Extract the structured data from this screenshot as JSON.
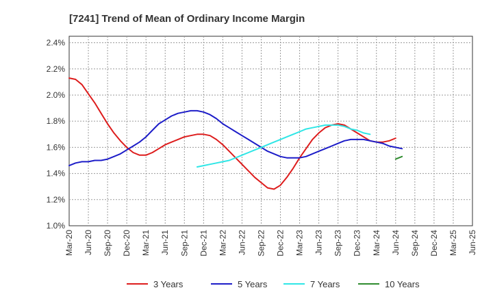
{
  "chart_data": {
    "type": "line",
    "title": "[7241]  Trend of Mean of Ordinary Income Margin",
    "xlabel": "",
    "ylabel": "",
    "x_ticks": [
      "Mar-20",
      "Jun-20",
      "Sep-20",
      "Dec-20",
      "Mar-21",
      "Jun-21",
      "Sep-21",
      "Dec-21",
      "Mar-22",
      "Jun-22",
      "Sep-22",
      "Dec-22",
      "Mar-23",
      "Jun-23",
      "Sep-23",
      "Dec-23",
      "Mar-24",
      "Jun-24",
      "Sep-24",
      "Dec-24",
      "Mar-25",
      "Jun-25"
    ],
    "y_ticks": [
      "1.0%",
      "1.2%",
      "1.4%",
      "1.6%",
      "1.8%",
      "2.0%",
      "2.2%",
      "2.4%"
    ],
    "ylim": [
      1.0,
      2.45
    ],
    "grid": true,
    "legend_position": "bottom",
    "series": [
      {
        "name": "3 Years",
        "color": "#dd1c1c",
        "values": [
          2.13,
          2.12,
          2.08,
          2.01,
          1.94,
          1.86,
          1.78,
          1.71,
          1.65,
          1.6,
          1.56,
          1.54,
          1.54,
          1.56,
          1.59,
          1.62,
          1.64,
          1.66,
          1.68,
          1.69,
          1.7,
          1.7,
          1.69,
          1.66,
          1.62,
          1.57,
          1.52,
          1.47,
          1.42,
          1.37,
          1.33,
          1.29,
          1.28,
          1.31,
          1.37,
          1.44,
          1.52,
          1.59,
          1.66,
          1.71,
          1.75,
          1.77,
          1.78,
          1.77,
          1.74,
          1.71,
          1.68,
          1.65,
          1.64,
          1.64,
          1.65,
          1.67
        ]
      },
      {
        "name": "5 Years",
        "color": "#1c1cc8",
        "values": [
          1.46,
          1.48,
          1.49,
          1.49,
          1.5,
          1.5,
          1.51,
          1.53,
          1.55,
          1.58,
          1.61,
          1.64,
          1.68,
          1.73,
          1.78,
          1.81,
          1.84,
          1.86,
          1.87,
          1.88,
          1.88,
          1.87,
          1.85,
          1.82,
          1.78,
          1.75,
          1.72,
          1.69,
          1.66,
          1.63,
          1.6,
          1.57,
          1.55,
          1.53,
          1.52,
          1.52,
          1.52,
          1.53,
          1.55,
          1.57,
          1.59,
          1.61,
          1.63,
          1.65,
          1.66,
          1.66,
          1.66,
          1.65,
          1.64,
          1.63,
          1.61,
          1.6,
          1.59
        ]
      },
      {
        "name": "7 Years",
        "color": "#2ee6e6",
        "values": [
          null,
          null,
          null,
          null,
          null,
          null,
          null,
          null,
          null,
          null,
          null,
          null,
          null,
          null,
          null,
          null,
          null,
          null,
          null,
          null,
          1.45,
          1.46,
          1.47,
          1.48,
          1.49,
          1.5,
          1.52,
          1.54,
          1.56,
          1.58,
          1.6,
          1.62,
          1.64,
          1.66,
          1.68,
          1.7,
          1.72,
          1.74,
          1.75,
          1.76,
          1.77,
          1.77,
          1.77,
          1.76,
          1.74,
          1.73,
          1.71,
          1.7
        ]
      },
      {
        "name": "10 Years",
        "color": "#2e8b2e",
        "values": [
          null,
          null,
          null,
          null,
          null,
          null,
          null,
          null,
          null,
          null,
          null,
          null,
          null,
          null,
          null,
          null,
          null,
          null,
          null,
          null,
          null,
          null,
          null,
          null,
          null,
          null,
          null,
          null,
          null,
          null,
          null,
          null,
          null,
          null,
          null,
          null,
          null,
          null,
          null,
          null,
          null,
          null,
          null,
          null,
          null,
          null,
          null,
          null,
          null,
          null,
          null,
          1.51,
          1.53
        ]
      }
    ]
  }
}
